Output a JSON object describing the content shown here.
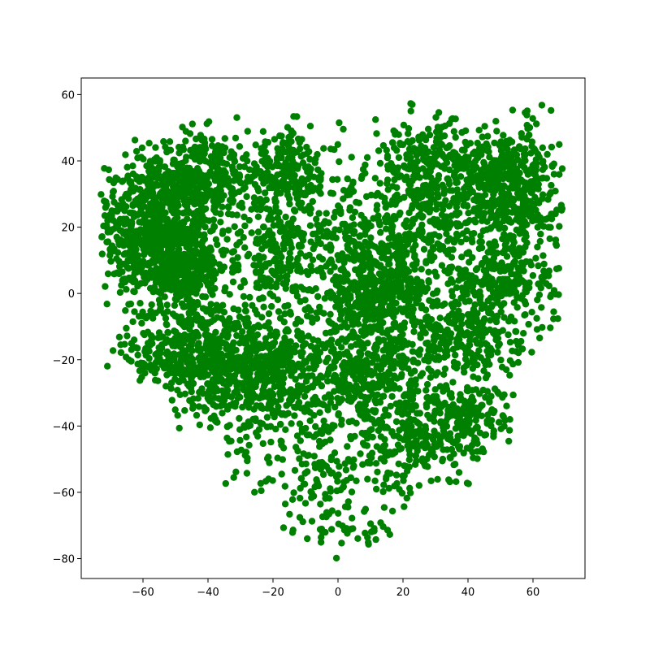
{
  "chart_data": {
    "type": "scatter",
    "title": "",
    "xlabel": "",
    "ylabel": "",
    "xlim": [
      -79,
      76
    ],
    "ylim": [
      -86,
      65
    ],
    "xticks": [
      -60,
      -40,
      -20,
      0,
      20,
      40,
      60
    ],
    "yticks": [
      -80,
      -60,
      -40,
      -20,
      0,
      20,
      40,
      60
    ],
    "xtick_labels": [
      "−60",
      "−40",
      "−20",
      "0",
      "20",
      "40",
      "60"
    ],
    "ytick_labels": [
      "−80",
      "−60",
      "−40",
      "−20",
      "0",
      "20",
      "40",
      "60"
    ],
    "grid": false,
    "legend": "none",
    "marker_color": "#008000",
    "approx_point_count": 5000,
    "clusters": [
      {
        "cx": -57,
        "cy": 20,
        "sx": 9,
        "sy": 10,
        "n": 620
      },
      {
        "cx": -48,
        "cy": 8,
        "sx": 7,
        "sy": 7,
        "n": 360
      },
      {
        "cx": -42,
        "cy": 35,
        "sx": 10,
        "sy": 7,
        "n": 360
      },
      {
        "cx": -45,
        "cy": -18,
        "sx": 10,
        "sy": 8,
        "n": 480
      },
      {
        "cx": -22,
        "cy": -25,
        "sx": 10,
        "sy": 9,
        "n": 460
      },
      {
        "cx": -18,
        "cy": 12,
        "sx": 9,
        "sy": 12,
        "n": 300
      },
      {
        "cx": -15,
        "cy": 38,
        "sx": 8,
        "sy": 6,
        "n": 160
      },
      {
        "cx": 5,
        "cy": 15,
        "sx": 9,
        "sy": 8,
        "n": 200
      },
      {
        "cx": 12,
        "cy": 0,
        "sx": 8,
        "sy": 6,
        "n": 320
      },
      {
        "cx": 10,
        "cy": -25,
        "sx": 12,
        "sy": 10,
        "n": 500
      },
      {
        "cx": 28,
        "cy": 38,
        "sx": 9,
        "sy": 7,
        "n": 280
      },
      {
        "cx": 25,
        "cy": 18,
        "sx": 8,
        "sy": 8,
        "n": 180
      },
      {
        "cx": 52,
        "cy": 32,
        "sx": 8,
        "sy": 9,
        "n": 520
      },
      {
        "cx": 50,
        "cy": 5,
        "sx": 9,
        "sy": 7,
        "n": 260
      },
      {
        "cx": 38,
        "cy": -12,
        "sx": 10,
        "sy": 6,
        "n": 260
      },
      {
        "cx": 40,
        "cy": -38,
        "sx": 8,
        "sy": 6,
        "n": 160
      },
      {
        "cx": 25,
        "cy": -45,
        "sx": 10,
        "sy": 7,
        "n": 160
      },
      {
        "cx": -5,
        "cy": -55,
        "sx": 14,
        "sy": 9,
        "n": 160
      },
      {
        "cx": 5,
        "cy": -72,
        "sx": 6,
        "sy": 4,
        "n": 30
      }
    ]
  }
}
